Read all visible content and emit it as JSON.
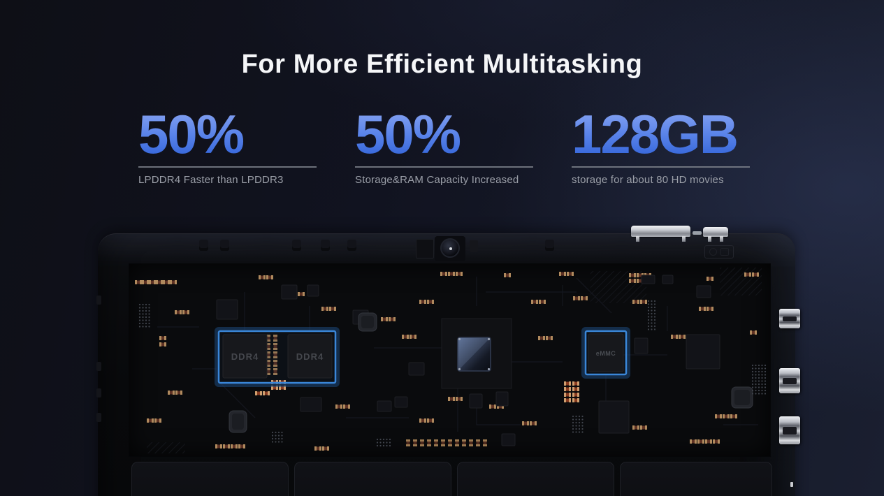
{
  "page": {
    "title": "For More Efficient Multitasking"
  },
  "stats": [
    {
      "value": "50%",
      "caption": "LPDDR4 Faster than LPDDR3"
    },
    {
      "value": "50%",
      "caption": "Storage&RAM Capacity Increased"
    },
    {
      "value": "128GB",
      "caption": "storage for about 80 HD movies"
    }
  ],
  "board": {
    "ram_chip_left_label": "DDR4",
    "ram_chip_right_label": "DDR4",
    "storage_chip_label": "eMMC"
  },
  "colors": {
    "highlight_blue": "#3a86d8",
    "stat_gradient_top": "#8fa9f2",
    "stat_gradient_bottom": "#2b5ed6",
    "caption_gray": "#9b9fa8"
  }
}
